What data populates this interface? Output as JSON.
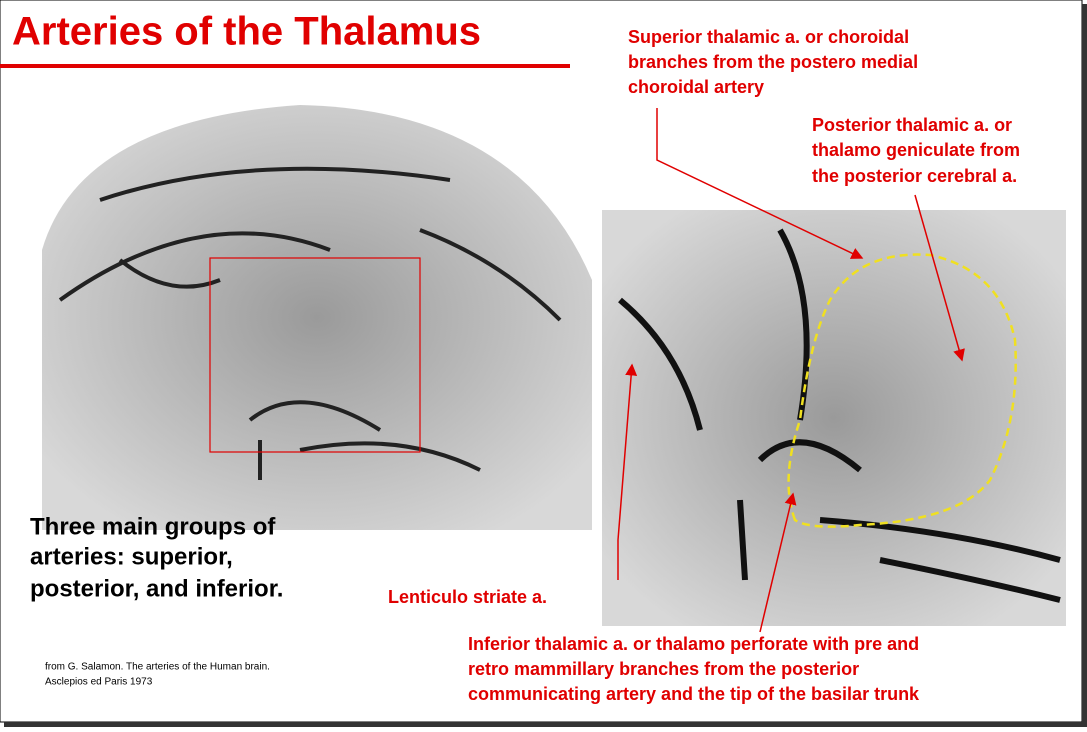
{
  "title": "Arteries of the Thalamus",
  "summary": [
    "Three main groups of",
    "arteries: superior,",
    "posterior, and inferior."
  ],
  "source": [
    "from G. Salamon. The arteries of the Human brain.",
    "Asclepios ed Paris 1973"
  ],
  "labels": {
    "superior": [
      "Superior thalamic a. or choroidal",
      "branches from the postero medial",
      "choroidal artery"
    ],
    "posterior": [
      "Posterior thalamic a. or",
      "thalamo geniculate from",
      "the posterior cerebral a."
    ],
    "lenticulo": "Lenticulo striate a.",
    "inferior": [
      "Inferior thalamic a. or thalamo perforate with pre and",
      "retro mammillary branches from the posterior",
      "communicating artery and the tip of the basilar trunk"
    ]
  }
}
